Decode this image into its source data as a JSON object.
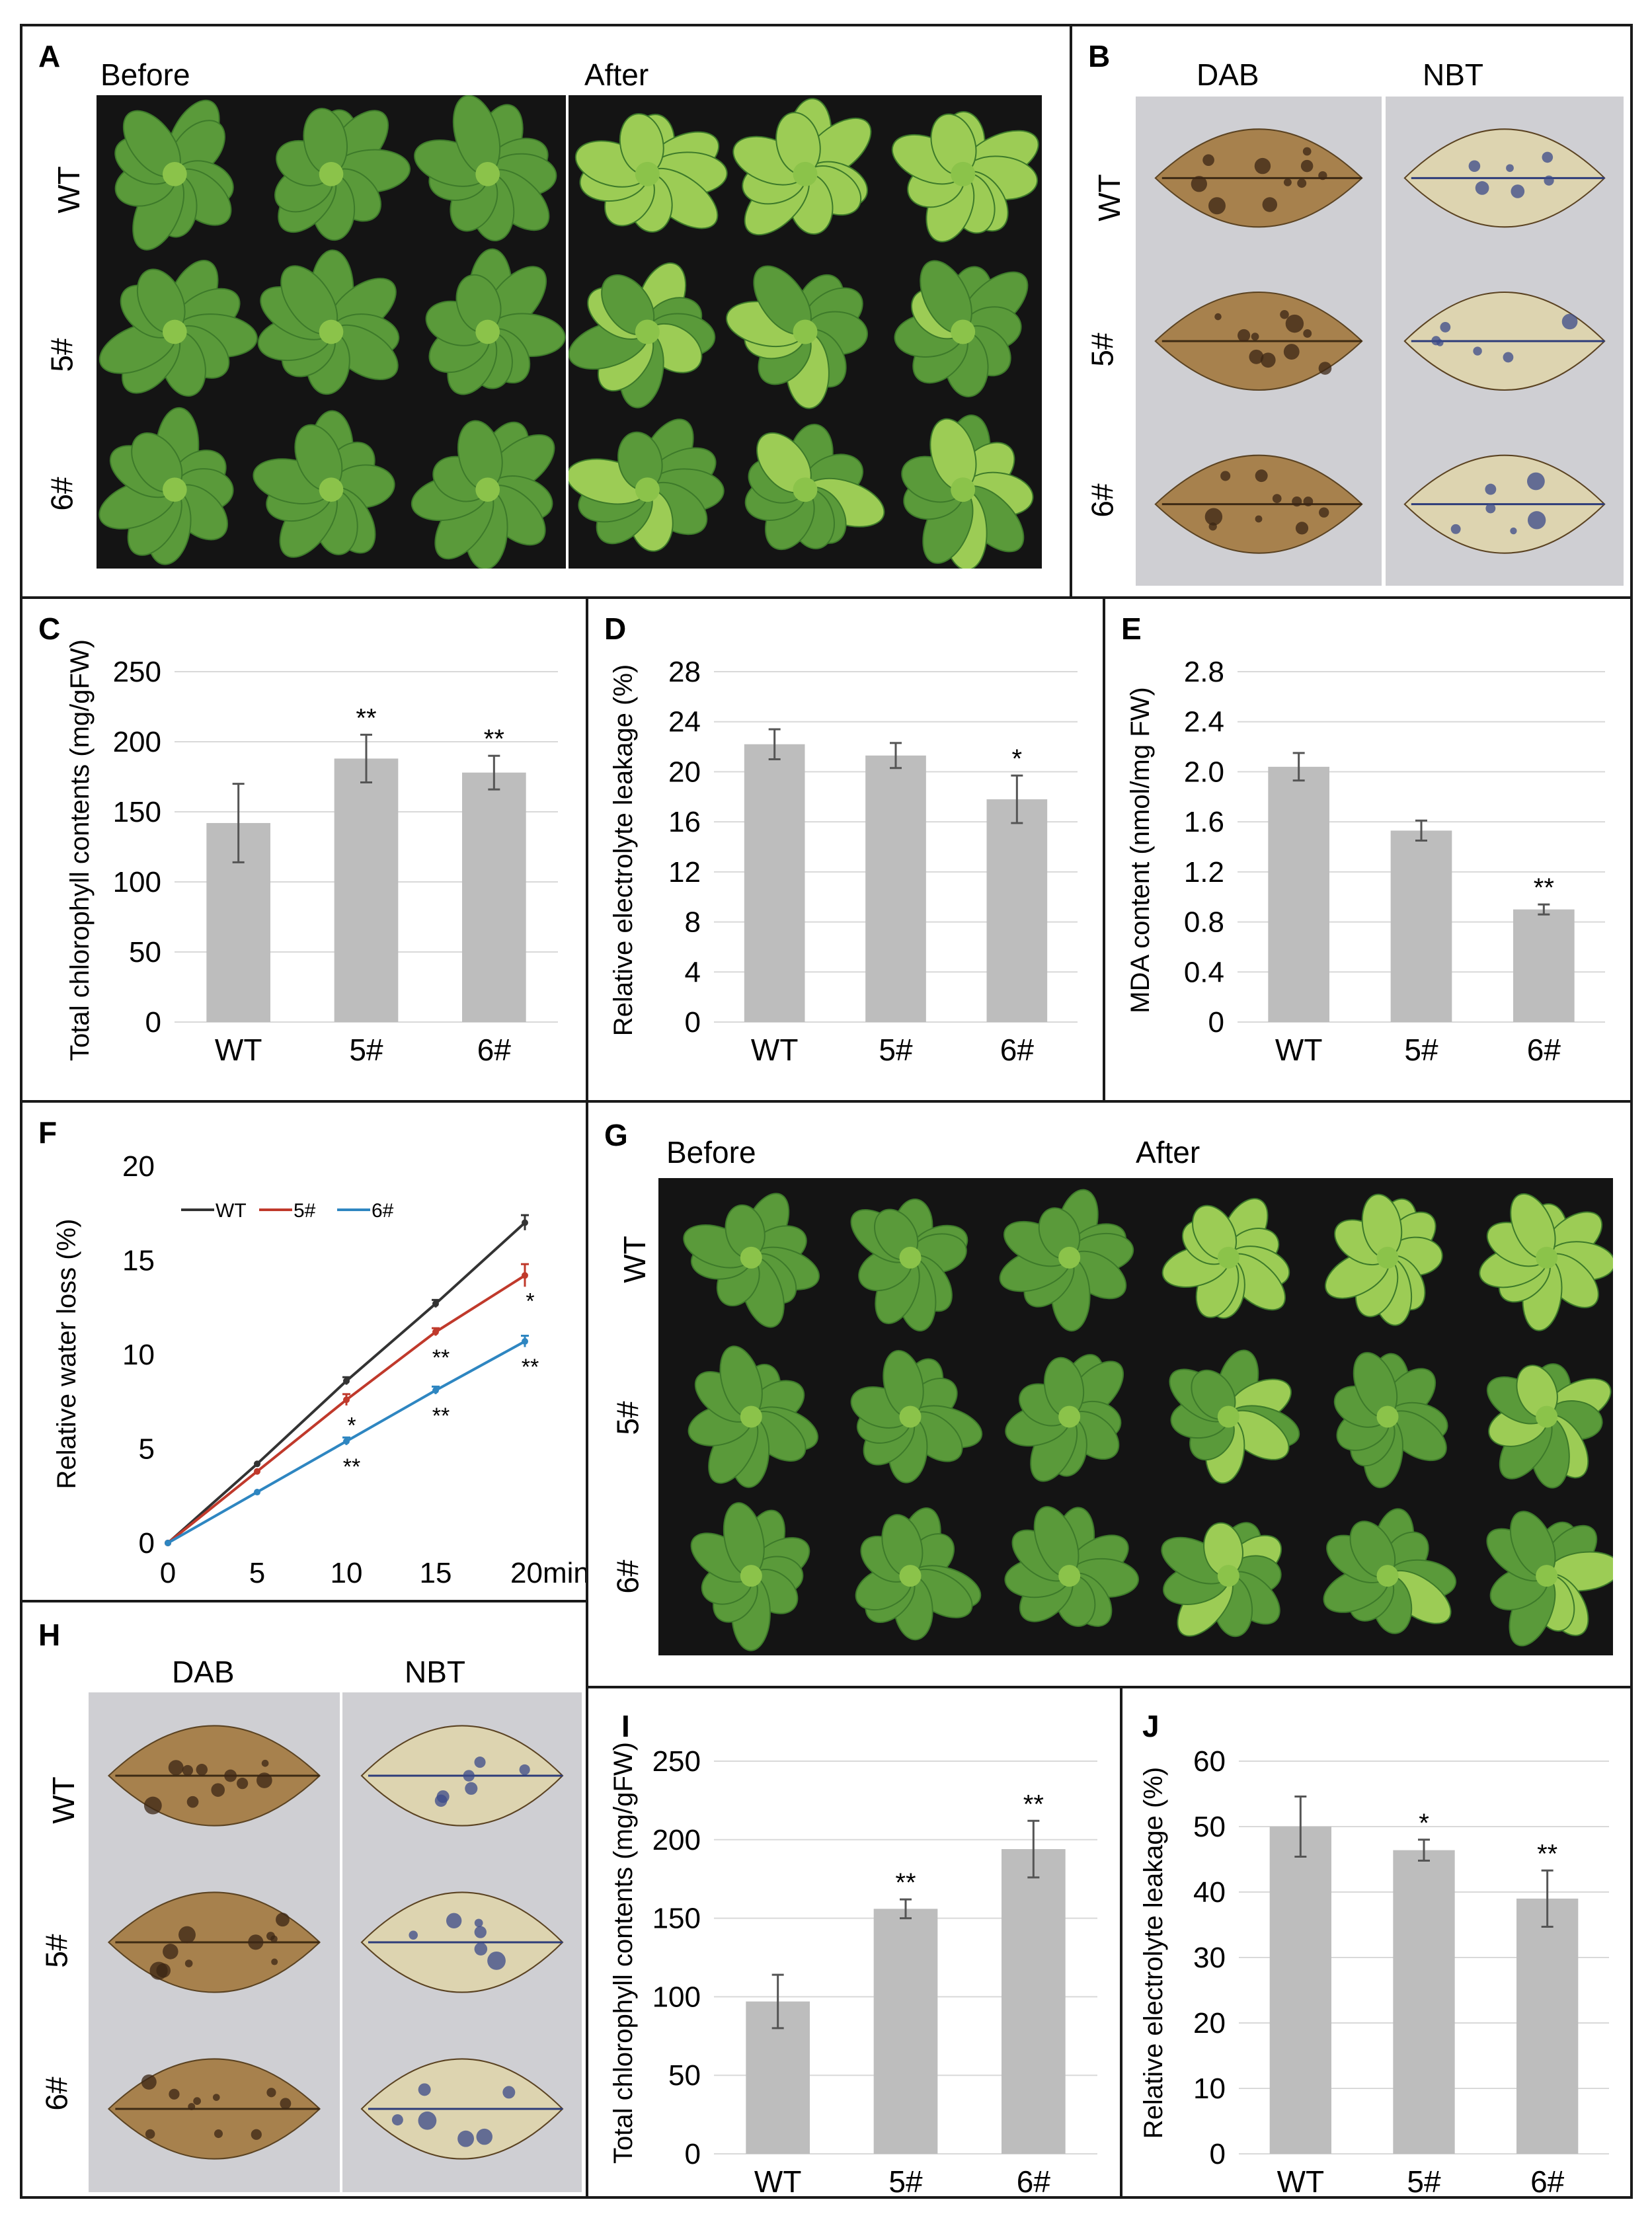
{
  "colors": {
    "bar": "#bdbdbd",
    "grid": "#d9d9d9",
    "wt_line": "#333333",
    "line_5": "#c0392b",
    "line_6": "#2e86c1",
    "plant": "#5a9a3a",
    "plant_pale": "#9ccc55",
    "dab_leaf": "#a7814d",
    "nbt_leaf": "#ddd4b0"
  },
  "panels": {
    "A": {
      "label": "A",
      "before": "Before",
      "after": "After",
      "rows": [
        "WT",
        "5#",
        "6#"
      ]
    },
    "B": {
      "label": "B",
      "col1": "DAB",
      "col2": "NBT",
      "rows": [
        "WT",
        "5#",
        "6#"
      ]
    },
    "G": {
      "label": "G",
      "before": "Before",
      "after": "After",
      "rows": [
        "WT",
        "5#",
        "6#"
      ]
    },
    "H": {
      "label": "H",
      "col1": "DAB",
      "col2": "NBT",
      "rows": [
        "WT",
        "5#",
        "6#"
      ]
    }
  },
  "chart_data": [
    {
      "panel": "C",
      "type": "bar",
      "categories": [
        "WT",
        "5#",
        "6#"
      ],
      "values": [
        142,
        188,
        178
      ],
      "errors": [
        28,
        17,
        12
      ],
      "sig": [
        "",
        "**",
        "**"
      ],
      "ylabel": "Total chlorophyll contents (mg/gFW)",
      "ylim": [
        0,
        250
      ],
      "yticks": [
        "0",
        "50",
        "100",
        "150",
        "200",
        "250"
      ],
      "grid": true
    },
    {
      "panel": "D",
      "type": "bar",
      "categories": [
        "WT",
        "5#",
        "6#"
      ],
      "values": [
        22.2,
        21.3,
        17.8
      ],
      "errors": [
        1.2,
        1.0,
        1.9
      ],
      "sig": [
        "",
        "",
        "*"
      ],
      "ylabel": "Relative electrolyte leakage (%)",
      "ylim": [
        0,
        28
      ],
      "yticks": [
        "0",
        "4",
        "8",
        "12",
        "16",
        "20",
        "24",
        "28"
      ],
      "grid": true
    },
    {
      "panel": "E",
      "type": "bar",
      "categories": [
        "WT",
        "5#",
        "6#"
      ],
      "values": [
        2.04,
        1.53,
        0.9
      ],
      "errors": [
        0.11,
        0.08,
        0.04
      ],
      "sig": [
        "",
        "",
        "**"
      ],
      "ylabel": "MDA content (nmol/mg FW)",
      "ylim": [
        0,
        2.8
      ],
      "yticks": [
        "0",
        "0.4",
        "0.8",
        "1.2",
        "1.6",
        "2.0",
        "2.4",
        "2.8"
      ],
      "grid": true
    },
    {
      "panel": "F",
      "type": "line",
      "x": [
        0,
        5,
        10,
        15,
        20
      ],
      "xticks": [
        "0",
        "5",
        "10",
        "15",
        "20min"
      ],
      "ylabel": "Relative water loss (%)",
      "ylim": [
        0,
        20
      ],
      "yticks": [
        "0",
        "5",
        "10",
        "15",
        "20"
      ],
      "legend": "top-left",
      "grid": false,
      "series": [
        {
          "name": "WT",
          "values": [
            0,
            4.2,
            8.6,
            12.7,
            17.0
          ],
          "errors": [
            0,
            0,
            0.2,
            0.2,
            0.4
          ],
          "sig": [
            "",
            "",
            "",
            "",
            ""
          ]
        },
        {
          "name": "5#",
          "values": [
            0,
            3.8,
            7.6,
            11.2,
            14.2
          ],
          "errors": [
            0,
            0,
            0.3,
            0.2,
            0.6
          ],
          "sig": [
            "",
            "",
            "*",
            "**",
            "*"
          ]
        },
        {
          "name": "6#",
          "values": [
            0,
            2.7,
            5.4,
            8.1,
            10.7
          ],
          "errors": [
            0,
            0,
            0.2,
            0.2,
            0.3
          ],
          "sig": [
            "",
            "",
            "**",
            "**",
            "**"
          ]
        }
      ]
    },
    {
      "panel": "I",
      "type": "bar",
      "categories": [
        "WT",
        "5#",
        "6#"
      ],
      "values": [
        97,
        156,
        194
      ],
      "errors": [
        17,
        6,
        18
      ],
      "sig": [
        "",
        "**",
        "**"
      ],
      "ylabel": "Total chlorophyll contents (mg/gFW)",
      "ylim": [
        0,
        250
      ],
      "yticks": [
        "0",
        "50",
        "100",
        "150",
        "200",
        "250"
      ],
      "grid": true
    },
    {
      "panel": "J",
      "type": "bar",
      "categories": [
        "WT",
        "5#",
        "6#"
      ],
      "values": [
        50,
        46.4,
        39
      ],
      "errors": [
        4.6,
        1.6,
        4.3
      ],
      "sig": [
        "",
        "*",
        "**"
      ],
      "ylabel": "Relative electrolyte leakage (%)",
      "ylim": [
        0,
        60
      ],
      "yticks": [
        "0",
        "10",
        "20",
        "30",
        "40",
        "50",
        "60"
      ],
      "grid": true
    }
  ]
}
